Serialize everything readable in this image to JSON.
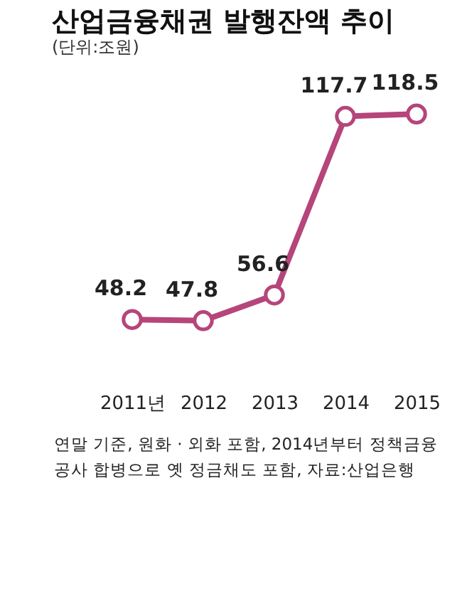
{
  "chart_data": {
    "type": "line",
    "title": "산업금융채권 발행잔액 추이",
    "subtitle": "(단위:조원)",
    "categories": [
      "2011년",
      "2012",
      "2013",
      "2014",
      "2015"
    ],
    "series": [
      {
        "color": "#b5457a",
        "values": [
          48.2,
          47.8,
          56.6,
          117.7,
          118.5
        ]
      }
    ],
    "data_labels": true,
    "marker": "circle",
    "line_style": "solid",
    "annotations": [
      "연말 기준, 원화 · 외화 포함, 2014년부터 정책금융",
      "공사 합병으로 옛 정금채도 포함, 자료:산업은행"
    ]
  }
}
